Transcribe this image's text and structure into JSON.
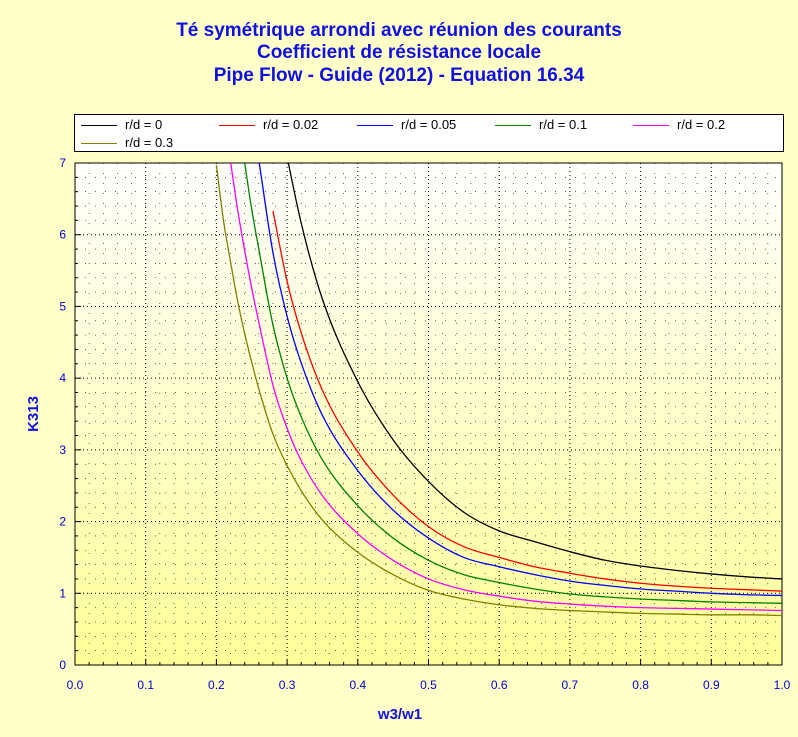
{
  "chart_data": {
    "type": "line",
    "title": [
      "Té symétrique arrondi avec réunion des courants",
      "Coefficient de résistance locale",
      "Pipe Flow - Guide (2012) - Equation 16.34"
    ],
    "xlabel": "w3/w1",
    "ylabel": "K313",
    "xlim": [
      0,
      1
    ],
    "ylim": [
      0,
      7
    ],
    "xticks": [
      "0.0",
      "0.1",
      "0.2",
      "0.3",
      "0.4",
      "0.5",
      "0.6",
      "0.7",
      "0.8",
      "0.9",
      "1.0"
    ],
    "yticks": [
      "0",
      "1",
      "2",
      "3",
      "4",
      "5",
      "6",
      "7"
    ],
    "grid": true,
    "legend_position": "top",
    "x": [
      0.2,
      0.21,
      0.22,
      0.23,
      0.24,
      0.25,
      0.26,
      0.28,
      0.3,
      0.32,
      0.35,
      0.4,
      0.45,
      0.5,
      0.55,
      0.6,
      0.65,
      0.7,
      0.75,
      0.8,
      0.85,
      0.9,
      0.95,
      1.0
    ],
    "series": [
      {
        "name": "r/d = 0",
        "color": "#000000",
        "values": [
          null,
          null,
          null,
          null,
          null,
          null,
          null,
          null,
          7.08,
          6.16,
          5.1,
          3.95,
          3.14,
          2.56,
          2.13,
          1.87,
          1.72,
          1.58,
          1.46,
          1.38,
          1.32,
          1.27,
          1.23,
          1.2
        ]
      },
      {
        "name": "r/d = 0.02",
        "color": "#ff0000",
        "values": [
          null,
          null,
          null,
          null,
          null,
          null,
          null,
          6.33,
          5.35,
          4.63,
          3.83,
          2.97,
          2.37,
          1.93,
          1.65,
          1.5,
          1.37,
          1.28,
          1.2,
          1.14,
          1.1,
          1.07,
          1.05,
          1.03
        ]
      },
      {
        "name": "r/d = 0.05",
        "color": "#0000ff",
        "values": [
          null,
          null,
          null,
          null,
          null,
          null,
          7.04,
          5.75,
          4.86,
          4.21,
          3.48,
          2.71,
          2.16,
          1.77,
          1.5,
          1.37,
          1.26,
          1.17,
          1.11,
          1.06,
          1.03,
          1.0,
          0.98,
          0.97
        ]
      },
      {
        "name": "r/d = 0.1",
        "color": "#008000",
        "values": [
          null,
          null,
          null,
          null,
          7.0,
          6.35,
          5.8,
          4.74,
          4.0,
          3.46,
          2.86,
          2.22,
          1.77,
          1.46,
          1.26,
          1.15,
          1.06,
          0.99,
          0.95,
          0.92,
          0.9,
          0.88,
          0.87,
          0.86
        ]
      },
      {
        "name": "r/d = 0.2",
        "color": "#ff00ff",
        "values": [
          null,
          null,
          7.02,
          6.35,
          5.78,
          5.25,
          4.78,
          3.9,
          3.3,
          2.85,
          2.36,
          1.83,
          1.46,
          1.2,
          1.05,
          0.96,
          0.89,
          0.85,
          0.82,
          0.8,
          0.79,
          0.78,
          0.77,
          0.76
        ]
      },
      {
        "name": "r/d = 0.3",
        "color": "#808000",
        "values": [
          6.97,
          6.2,
          5.62,
          5.08,
          4.62,
          4.22,
          3.85,
          3.22,
          2.78,
          2.43,
          2.02,
          1.57,
          1.26,
          1.04,
          0.92,
          0.84,
          0.79,
          0.76,
          0.74,
          0.72,
          0.71,
          0.7,
          0.7,
          0.69
        ]
      }
    ]
  }
}
